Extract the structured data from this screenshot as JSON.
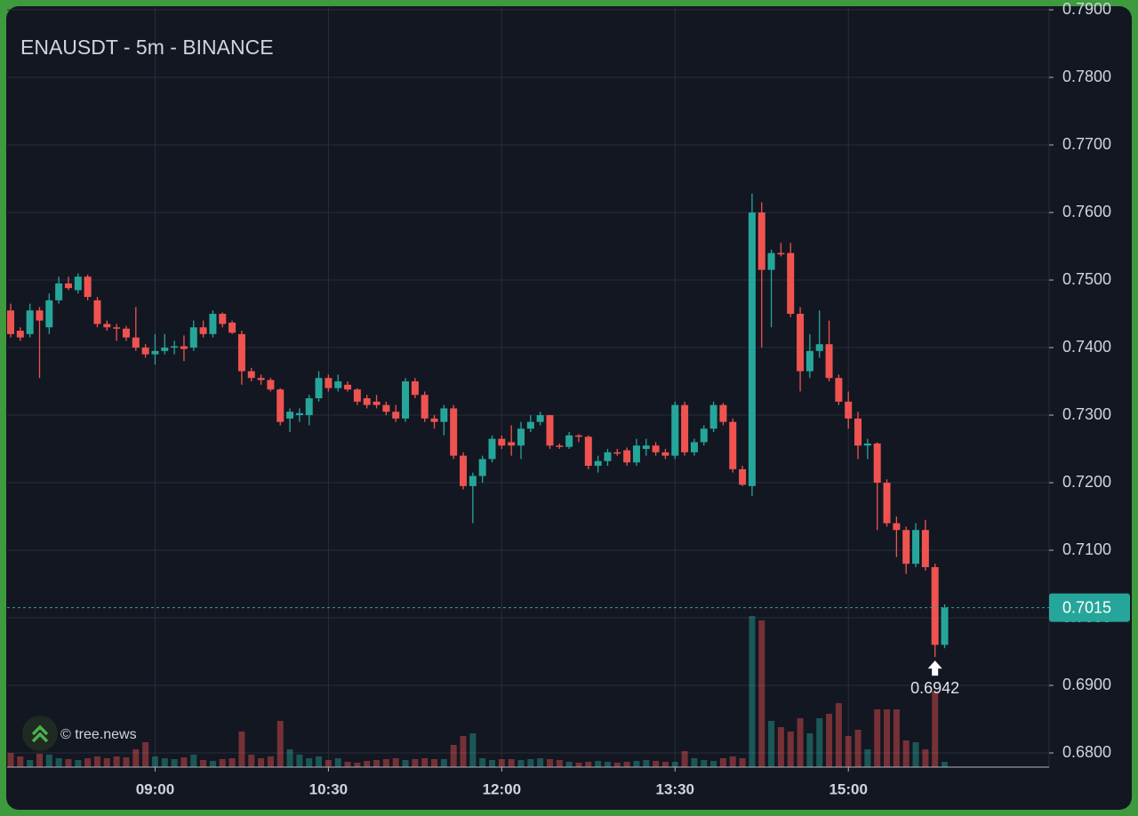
{
  "chart_data": {
    "type": "candlestick",
    "title": "ENAUSDT - 5m - BINANCE",
    "watermark": "© tree.news",
    "x": [
      null,
      null,
      null,
      null,
      null,
      null,
      null,
      null,
      null,
      null,
      null,
      null,
      null,
      null,
      null,
      "09:00",
      null,
      null,
      null,
      null,
      null,
      null,
      null,
      null,
      null,
      null,
      null,
      null,
      null,
      null,
      null,
      null,
      null,
      "10:30",
      null,
      null,
      null,
      null,
      null,
      null,
      null,
      null,
      null,
      null,
      null,
      null,
      null,
      null,
      null,
      null,
      null,
      "12:00",
      null,
      null,
      null,
      null,
      null,
      null,
      null,
      null,
      null,
      null,
      null,
      null,
      null,
      null,
      null,
      null,
      null,
      "13:30",
      null,
      null,
      null,
      null,
      null,
      null,
      null,
      null,
      null,
      null,
      null,
      null,
      null,
      null,
      null,
      null,
      null,
      "15:00",
      null,
      null,
      null,
      null,
      null,
      null,
      null,
      null,
      null,
      null
    ],
    "open": [
      0.7455,
      0.7425,
      0.742,
      0.7455,
      0.743,
      0.747,
      0.7495,
      0.7485,
      0.7505,
      0.747,
      0.7435,
      0.743,
      0.7428,
      0.7415,
      0.74,
      0.739,
      0.7395,
      0.74,
      0.7402,
      0.74,
      0.743,
      0.742,
      0.745,
      0.7437,
      0.742,
      0.7365,
      0.7355,
      0.7352,
      0.7338,
      0.7295,
      0.73,
      0.73,
      0.7325,
      0.7355,
      0.734,
      0.7345,
      0.7338,
      0.7325,
      0.732,
      0.7315,
      0.7305,
      0.7295,
      0.735,
      0.733,
      0.7295,
      0.729,
      0.731,
      0.724,
      0.7195,
      0.721,
      0.7235,
      0.7265,
      0.726,
      0.7255,
      0.728,
      0.729,
      0.73,
      0.7255,
      0.7253,
      0.727,
      0.7268,
      0.7225,
      0.7232,
      0.7245,
      0.7248,
      0.723,
      0.725,
      0.7255,
      0.7245,
      0.724,
      0.7315,
      0.7245,
      0.726,
      0.728,
      0.7315,
      0.729,
      0.722,
      0.7195,
      0.76,
      0.7515,
      0.754,
      0.754,
      0.745,
      0.7365,
      0.7395,
      0.7405,
      0.7355,
      0.732,
      0.7295,
      0.7255,
      0.7258,
      0.72,
      0.714,
      0.713,
      0.708,
      0.713,
      0.7075,
      0.696
    ],
    "high": [
      0.7465,
      0.743,
      0.7465,
      0.746,
      0.748,
      0.7505,
      0.7505,
      0.751,
      0.7508,
      0.7475,
      0.744,
      0.7435,
      0.7432,
      0.746,
      0.7405,
      0.742,
      0.742,
      0.741,
      0.7418,
      0.744,
      0.744,
      0.7455,
      0.7452,
      0.744,
      0.7425,
      0.737,
      0.736,
      0.7355,
      0.734,
      0.731,
      0.731,
      0.733,
      0.7365,
      0.736,
      0.736,
      0.735,
      0.734,
      0.733,
      0.733,
      0.732,
      0.7315,
      0.7355,
      0.7355,
      0.7335,
      0.73,
      0.7315,
      0.7315,
      0.7245,
      0.7215,
      0.724,
      0.727,
      0.727,
      0.7285,
      0.729,
      0.73,
      0.7305,
      0.73,
      0.7258,
      0.7275,
      0.7272,
      0.727,
      0.724,
      0.725,
      0.725,
      0.7252,
      0.7265,
      0.7265,
      0.726,
      0.725,
      0.732,
      0.732,
      0.7265,
      0.7285,
      0.732,
      0.7318,
      0.7295,
      0.7225,
      0.7628,
      0.7615,
      0.7545,
      0.7555,
      0.7555,
      0.746,
      0.742,
      0.7455,
      0.744,
      0.736,
      0.7335,
      0.7305,
      0.7265,
      0.726,
      0.7205,
      0.715,
      0.7135,
      0.714,
      0.7145,
      0.708,
      0.702
    ],
    "low": [
      0.7415,
      0.741,
      0.7415,
      0.7355,
      0.742,
      0.7465,
      0.7485,
      0.748,
      0.747,
      0.743,
      0.7425,
      0.741,
      0.741,
      0.7395,
      0.7385,
      0.7375,
      0.739,
      0.739,
      0.738,
      0.7395,
      0.7415,
      0.7415,
      0.743,
      0.742,
      0.7345,
      0.735,
      0.7345,
      0.7335,
      0.7285,
      0.7275,
      0.729,
      0.7285,
      0.732,
      0.7335,
      0.7335,
      0.7335,
      0.7315,
      0.731,
      0.731,
      0.73,
      0.729,
      0.729,
      0.7325,
      0.729,
      0.728,
      0.727,
      0.7235,
      0.719,
      0.714,
      0.72,
      0.723,
      0.725,
      0.724,
      0.7235,
      0.7275,
      0.7285,
      0.725,
      0.725,
      0.725,
      0.726,
      0.722,
      0.7215,
      0.7225,
      0.724,
      0.7225,
      0.7225,
      0.724,
      0.724,
      0.7235,
      0.7235,
      0.724,
      0.724,
      0.7255,
      0.7275,
      0.7285,
      0.7215,
      0.7195,
      0.718,
      0.74,
      0.743,
      0.7535,
      0.7445,
      0.7335,
      0.7355,
      0.7385,
      0.735,
      0.7315,
      0.728,
      0.7235,
      0.7235,
      0.713,
      0.7135,
      0.709,
      0.7065,
      0.7075,
      0.707,
      0.6942,
      0.6955
    ],
    "close": [
      0.742,
      0.7415,
      0.7455,
      0.744,
      0.747,
      0.7495,
      0.7488,
      0.7505,
      0.7475,
      0.7435,
      0.743,
      0.7428,
      0.7415,
      0.74,
      0.739,
      0.7395,
      0.74,
      0.7402,
      0.7398,
      0.743,
      0.742,
      0.745,
      0.7435,
      0.7422,
      0.7365,
      0.7355,
      0.7352,
      0.7338,
      0.729,
      0.7305,
      0.7303,
      0.7325,
      0.7355,
      0.734,
      0.735,
      0.7338,
      0.732,
      0.7315,
      0.7315,
      0.7305,
      0.7295,
      0.735,
      0.733,
      0.7295,
      0.729,
      0.731,
      0.724,
      0.7195,
      0.721,
      0.7235,
      0.7265,
      0.7255,
      0.7255,
      0.728,
      0.729,
      0.73,
      0.7255,
      0.7253,
      0.727,
      0.7268,
      0.7225,
      0.7232,
      0.7245,
      0.7243,
      0.723,
      0.7255,
      0.7255,
      0.7245,
      0.724,
      0.7315,
      0.7245,
      0.726,
      0.728,
      0.7315,
      0.729,
      0.722,
      0.7197,
      0.76,
      0.7515,
      0.754,
      0.7538,
      0.745,
      0.7365,
      0.7395,
      0.7405,
      0.7355,
      0.732,
      0.7295,
      0.7255,
      0.7258,
      0.72,
      0.714,
      0.713,
      0.708,
      0.713,
      0.7075,
      0.696,
      0.7015
    ],
    "volume": [
      16,
      12,
      8,
      15,
      14,
      10,
      9,
      8,
      10,
      12,
      10,
      12,
      11,
      20,
      28,
      12,
      10,
      9,
      11,
      14,
      8,
      7,
      9,
      10,
      40,
      14,
      10,
      12,
      52,
      20,
      14,
      10,
      12,
      8,
      10,
      6,
      5,
      7,
      8,
      9,
      10,
      8,
      9,
      10,
      9,
      9,
      25,
      35,
      38,
      10,
      8,
      9,
      9,
      8,
      9,
      10,
      9,
      8,
      6,
      5,
      6,
      7,
      6,
      5,
      6,
      7,
      8,
      7,
      6,
      6,
      18,
      10,
      8,
      7,
      10,
      12,
      10,
      170,
      165,
      52,
      45,
      40,
      55,
      38,
      55,
      60,
      72,
      35,
      42,
      20,
      65,
      65,
      65,
      30,
      28,
      20,
      85,
      6
    ],
    "up_color": "#26a69a",
    "down_color": "#ef5350",
    "ylim": [
      0.6779,
      0.7904
    ],
    "yticks": [
      {
        "value": 0.68,
        "label": "0.6800"
      },
      {
        "value": 0.69,
        "label": "0.6900"
      },
      {
        "value": 0.7,
        "label": "0.7000"
      },
      {
        "value": 0.71,
        "label": "0.7100"
      },
      {
        "value": 0.72,
        "label": "0.7200"
      },
      {
        "value": 0.73,
        "label": "0.7300"
      },
      {
        "value": 0.74,
        "label": "0.7400"
      },
      {
        "value": 0.75,
        "label": "0.7500"
      },
      {
        "value": 0.76,
        "label": "0.7600"
      },
      {
        "value": 0.77,
        "label": "0.7700"
      },
      {
        "value": 0.78,
        "label": "0.7800"
      },
      {
        "value": 0.79,
        "label": "0.7900"
      }
    ],
    "grid": true,
    "last_price": {
      "value": 0.7015,
      "label": "0.7015"
    },
    "low_marker": {
      "value": 0.6942,
      "label": "0.6942"
    }
  }
}
